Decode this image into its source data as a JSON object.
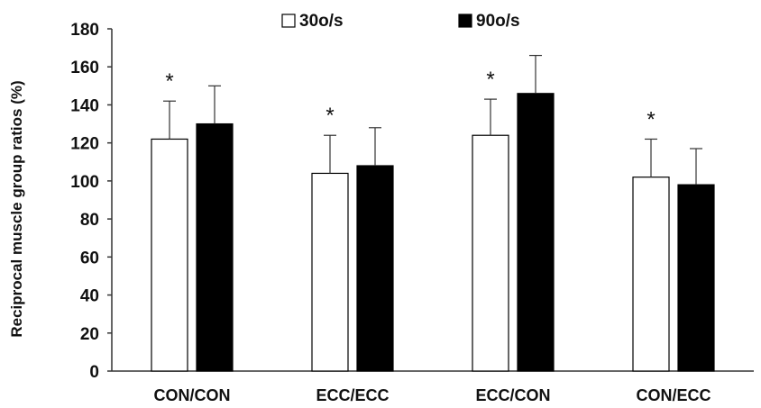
{
  "chart_data": {
    "type": "bar",
    "ylabel": "Reciprocal muscle group ratios (%)",
    "xlabel": "",
    "ylim": [
      0,
      180
    ],
    "yticks": [
      0,
      20,
      40,
      60,
      80,
      100,
      120,
      140,
      160,
      180
    ],
    "grid": false,
    "legend_position": "top-center",
    "categories": [
      "CON/CON",
      "ECC/ECC",
      "ECC/CON",
      "CON/ECC"
    ],
    "series": [
      {
        "name": "30o/s",
        "fill": "#ffffff",
        "stroke": "#000000",
        "values": [
          122,
          104,
          124,
          102
        ],
        "errors": [
          20,
          20,
          19,
          20
        ]
      },
      {
        "name": "90o/s",
        "fill": "#000000",
        "stroke": "#000000",
        "values": [
          130,
          108,
          146,
          98
        ],
        "errors": [
          20,
          20,
          20,
          19
        ]
      }
    ],
    "annotations": [
      {
        "category": 0,
        "series": 0,
        "text": "*"
      },
      {
        "category": 1,
        "series": 0,
        "text": "*"
      },
      {
        "category": 2,
        "series": 0,
        "text": "*"
      },
      {
        "category": 3,
        "series": 0,
        "text": "*"
      }
    ]
  }
}
